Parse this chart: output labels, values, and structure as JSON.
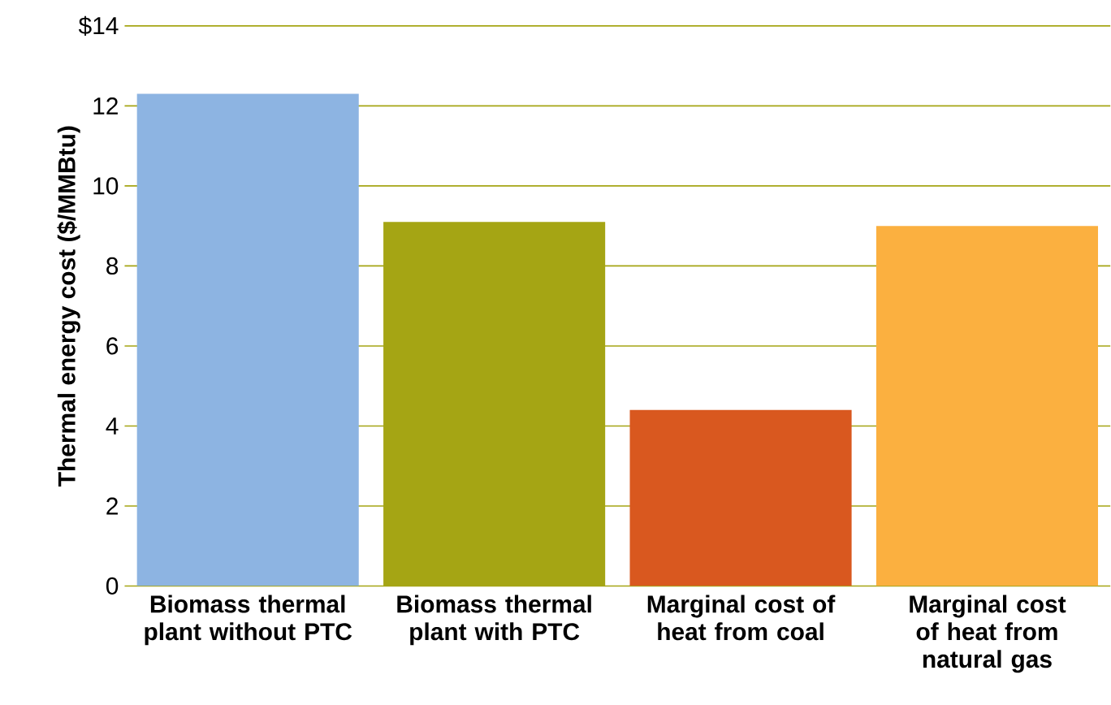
{
  "chart_data": {
    "type": "bar",
    "ylabel": "Thermal energy cost ($/MMBtu)",
    "categories": [
      "Biomass thermal plant without PTC",
      "Biomass thermal plant with PTC",
      "Marginal cost of heat from coal",
      "Marginal cost of heat from natural gas"
    ],
    "values": [
      12.3,
      9.1,
      4.4,
      9.0
    ],
    "colors": [
      "#8db4e2",
      "#a5a514",
      "#d9581f",
      "#fbb040"
    ],
    "ylim": [
      0,
      14
    ],
    "yticks": [
      0,
      2,
      4,
      6,
      8,
      10,
      12,
      {
        "value": 14,
        "label": "$14"
      }
    ],
    "grid": "y"
  }
}
